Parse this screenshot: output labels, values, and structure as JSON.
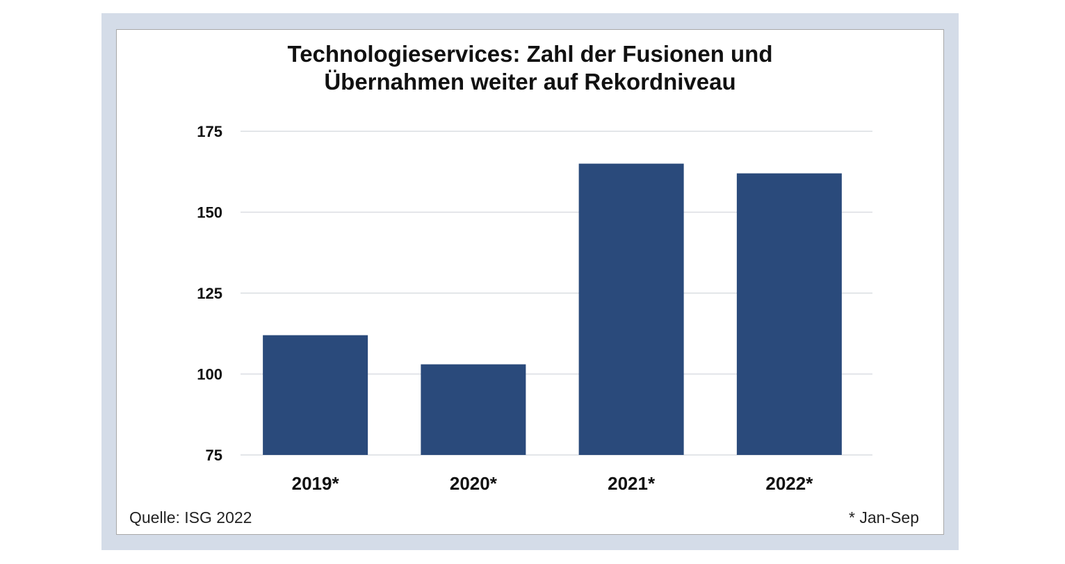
{
  "chart_data": {
    "type": "bar",
    "title_lines": [
      "Technologieservices: Zahl der Fusionen und",
      "Übernahmen weiter auf Rekordniveau"
    ],
    "categories": [
      "2019*",
      "2020*",
      "2021*",
      "2022*"
    ],
    "values": [
      112,
      103,
      165,
      162
    ],
    "ylim": [
      75,
      175
    ],
    "yticks": [
      75,
      100,
      125,
      150,
      175
    ],
    "ytick_labels": [
      "75",
      "100",
      "125",
      "150",
      "175"
    ],
    "xlabel": "",
    "ylabel": "",
    "grid": true,
    "legend": "none",
    "bar_color": "#2a4a7b"
  },
  "source": "Quelle: ISG 2022",
  "footnote": "* Jan-Sep",
  "colors": {
    "frame": "#d4dce8",
    "bar": "#2a4a7b",
    "grid": "#dadde2"
  }
}
